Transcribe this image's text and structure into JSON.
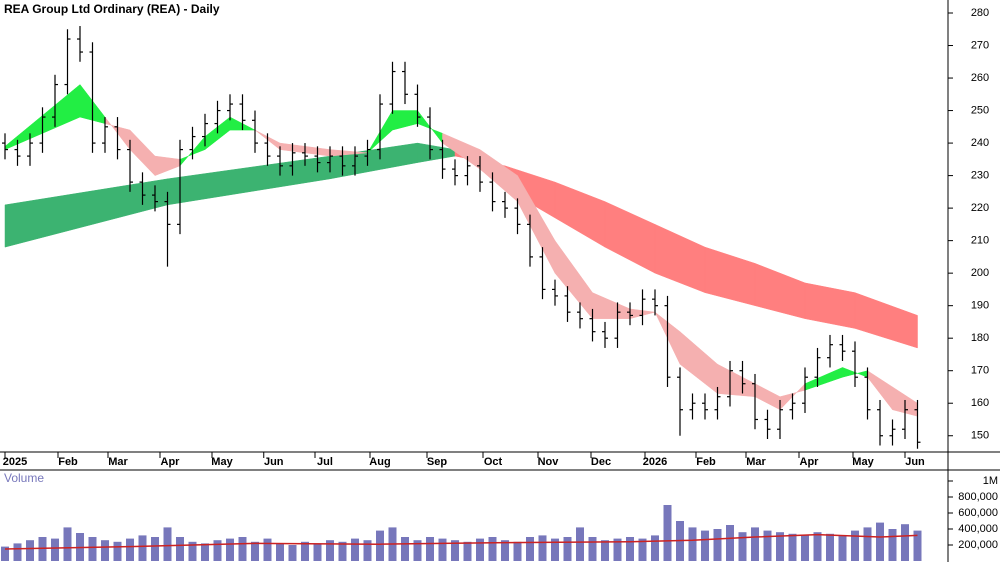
{
  "chart_data": [
    {
      "type": "ohlc",
      "title": "REA Group Ltd Ordinary (REA) - Daily",
      "color": "#000000",
      "open": [
        240,
        238,
        236,
        240,
        248,
        258,
        272,
        268,
        240,
        245,
        238,
        228,
        224,
        222,
        215,
        238,
        242,
        246,
        250,
        252,
        247,
        240,
        236,
        233,
        237,
        236,
        234,
        236,
        233,
        236,
        238,
        252,
        262,
        255,
        248,
        238,
        232,
        230,
        233,
        228,
        222,
        220,
        215,
        205,
        195,
        193,
        188,
        186,
        182,
        180,
        188,
        187,
        192,
        190,
        168,
        158,
        160,
        158,
        162,
        170,
        166,
        155,
        152,
        158,
        160,
        168,
        174,
        178,
        176,
        168,
        158,
        150,
        152,
        158
      ],
      "high": [
        243,
        241,
        243,
        251,
        261,
        275,
        276,
        271,
        248,
        248,
        241,
        231,
        227,
        225,
        241,
        245,
        249,
        253,
        255,
        255,
        250,
        243,
        239,
        240,
        240,
        239,
        239,
        239,
        239,
        241,
        255,
        265,
        265,
        258,
        251,
        241,
        235,
        236,
        236,
        231,
        225,
        223,
        218,
        208,
        198,
        196,
        191,
        189,
        185,
        191,
        191,
        195,
        195,
        193,
        171,
        163,
        163,
        165,
        173,
        173,
        169,
        158,
        161,
        163,
        171,
        177,
        181,
        181,
        179,
        171,
        161,
        155,
        161,
        161
      ],
      "low": [
        235,
        233,
        233,
        237,
        245,
        255,
        265,
        237,
        237,
        235,
        225,
        221,
        219,
        202,
        212,
        235,
        239,
        243,
        247,
        244,
        237,
        233,
        230,
        230,
        233,
        231,
        231,
        230,
        230,
        233,
        235,
        249,
        252,
        245,
        235,
        229,
        227,
        227,
        225,
        219,
        217,
        212,
        202,
        192,
        190,
        185,
        183,
        179,
        177,
        177,
        184,
        184,
        187,
        165,
        150,
        155,
        155,
        155,
        159,
        163,
        152,
        149,
        149,
        155,
        157,
        165,
        171,
        173,
        165,
        155,
        147,
        147,
        149,
        146
      ],
      "close": [
        238,
        236,
        240,
        248,
        258,
        272,
        268,
        240,
        245,
        238,
        228,
        224,
        222,
        215,
        238,
        242,
        246,
        250,
        252,
        247,
        240,
        236,
        233,
        237,
        236,
        234,
        236,
        233,
        236,
        238,
        252,
        262,
        255,
        248,
        238,
        232,
        230,
        233,
        228,
        222,
        220,
        215,
        205,
        195,
        193,
        188,
        186,
        182,
        180,
        188,
        187,
        192,
        190,
        168,
        158,
        160,
        158,
        162,
        170,
        166,
        155,
        152,
        158,
        160,
        168,
        174,
        178,
        176,
        168,
        158,
        150,
        152,
        158,
        148
      ],
      "bands": [
        {
          "x": [
            0,
            6,
            8,
            10,
            12,
            14,
            16,
            18,
            20,
            22,
            26,
            29,
            31,
            33,
            35,
            38,
            41,
            44,
            47,
            50,
            52,
            54,
            57,
            60,
            62,
            64,
            67,
            69,
            71,
            73
          ],
          "fast": [
            239,
            258,
            248,
            238,
            230,
            233,
            242,
            248,
            244,
            238,
            236,
            237,
            250,
            250,
            240,
            232,
            222,
            200,
            186,
            186,
            188,
            172,
            163,
            162,
            158,
            166,
            171,
            168,
            158,
            156
          ],
          "slow": [
            238,
            248,
            246,
            244,
            236,
            235,
            238,
            244,
            244,
            240,
            238,
            237,
            244,
            246,
            243,
            238,
            230,
            210,
            194,
            189,
            188,
            182,
            172,
            166,
            162,
            164,
            168,
            170,
            165,
            160
          ],
          "color_up": "#22ee44",
          "color_down": "#f5b0b0"
        },
        {
          "x": [
            0,
            13,
            26,
            33,
            36,
            40,
            44,
            48,
            52,
            56,
            60,
            64,
            68,
            73
          ],
          "fast": [
            221,
            229,
            236,
            240,
            238,
            226,
            217,
            208,
            200,
            194,
            190,
            186,
            183,
            177
          ],
          "slow": [
            208,
            221,
            229,
            234,
            236,
            233,
            228,
            222,
            215,
            208,
            203,
            197,
            194,
            187
          ],
          "color_up": "#3cb371",
          "color_down": "#ff7f7f"
        }
      ],
      "xticks": [
        {
          "value": 0.8,
          "label": "2025"
        },
        {
          "value": 5.04,
          "label": "Feb"
        },
        {
          "value": 9.04,
          "label": "Mar"
        },
        {
          "value": 13.2,
          "label": "Apr"
        },
        {
          "value": 17.36,
          "label": "May"
        },
        {
          "value": 21.5,
          "label": "Jun"
        },
        {
          "value": 25.6,
          "label": "Jul"
        },
        {
          "value": 30,
          "label": "Aug"
        },
        {
          "value": 34.56,
          "label": "Sep"
        },
        {
          "value": 39.04,
          "label": "Oct"
        },
        {
          "value": 43.44,
          "label": "Nov"
        },
        {
          "value": 47.68,
          "label": "Dec"
        },
        {
          "value": 52,
          "label": "2026"
        },
        {
          "value": 56.08,
          "label": "Feb"
        },
        {
          "value": 60.08,
          "label": "Mar"
        },
        {
          "value": 64.32,
          "label": "Apr"
        },
        {
          "value": 68.64,
          "label": "May"
        },
        {
          "value": 72.8,
          "label": "Jun"
        }
      ],
      "ylim": [
        145,
        284
      ],
      "yticks": [
        150,
        160,
        170,
        180,
        190,
        200,
        210,
        220,
        230,
        240,
        250,
        260,
        270,
        280
      ]
    },
    {
      "type": "bar",
      "title": "Volume",
      "color": "#7777bb",
      "values": [
        180000,
        220000,
        260000,
        300000,
        280000,
        420000,
        350000,
        300000,
        260000,
        240000,
        280000,
        320000,
        300000,
        420000,
        300000,
        240000,
        220000,
        260000,
        280000,
        300000,
        240000,
        280000,
        220000,
        200000,
        240000,
        220000,
        260000,
        240000,
        280000,
        260000,
        380000,
        420000,
        300000,
        260000,
        300000,
        280000,
        260000,
        240000,
        280000,
        300000,
        260000,
        240000,
        300000,
        320000,
        280000,
        300000,
        420000,
        300000,
        260000,
        280000,
        300000,
        280000,
        320000,
        700000,
        500000,
        420000,
        380000,
        400000,
        450000,
        360000,
        420000,
        380000,
        360000,
        340000,
        320000,
        360000,
        340000,
        320000,
        380000,
        420000,
        480000,
        400000,
        460000,
        380000
      ],
      "average": {
        "x": [
          0,
          10,
          20,
          30,
          40,
          50,
          55,
          60,
          65,
          70,
          73
        ],
        "values": [
          150000,
          180000,
          220000,
          210000,
          230000,
          240000,
          260000,
          300000,
          330000,
          300000,
          320000
        ],
        "color": "#cc2222"
      },
      "ylim": [
        0,
        1100000
      ],
      "yticks": [
        {
          "value": 200000,
          "label": "200,000"
        },
        {
          "value": 400000,
          "label": "400,000"
        },
        {
          "value": 600000,
          "label": "600,000"
        },
        {
          "value": 800000,
          "label": "800,000"
        },
        {
          "value": 1000000,
          "label": "1M"
        }
      ]
    }
  ]
}
